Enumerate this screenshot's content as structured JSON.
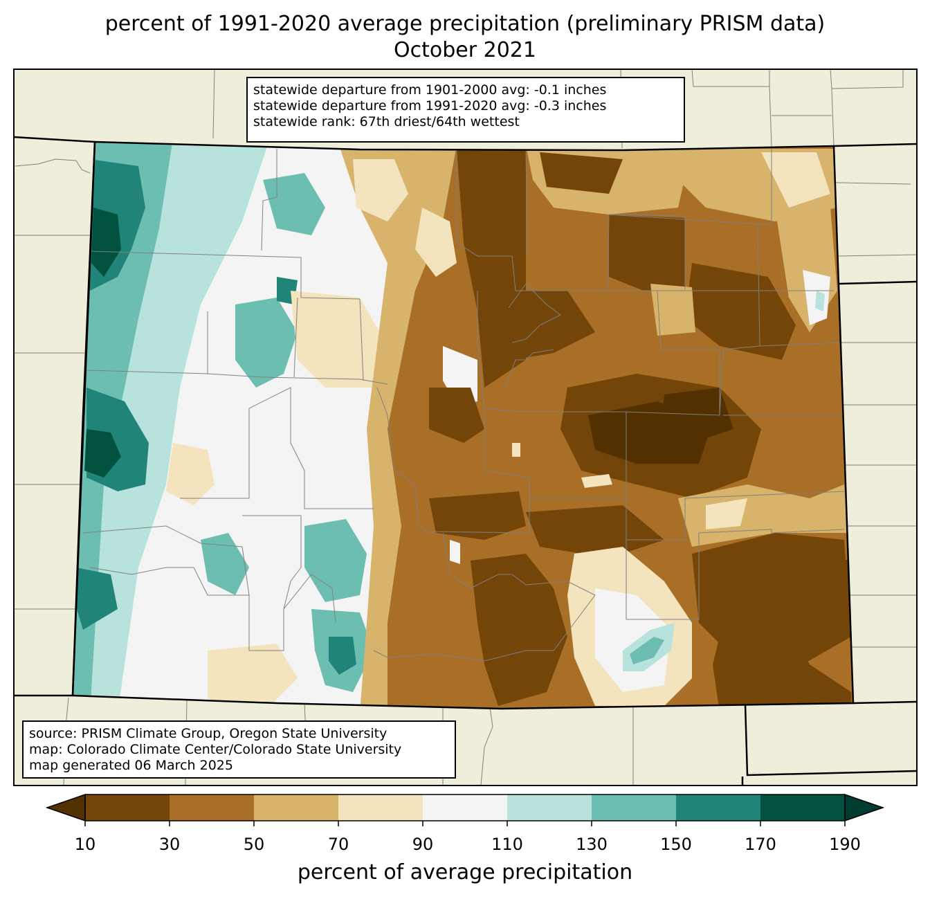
{
  "title_line1": "percent of 1991-2020 average precipitation (preliminary PRISM data)",
  "title_line2": "October 2021",
  "stats": [
    "statewide departure from 1901-2000 avg: -0.1 inches",
    "statewide departure from 1991-2020 avg: -0.3 inches",
    "statewide rank: 67th driest/64th wettest"
  ],
  "source": [
    "source: PRISM Climate Group, Oregon State University",
    "map: Colorado Climate Center/Colorado State University",
    "map generated 06 March 2025"
  ],
  "colorbar": {
    "label": "percent of average precipitation",
    "ticks": [
      "10",
      "30",
      "50",
      "70",
      "90",
      "110",
      "130",
      "150",
      "170",
      "190"
    ],
    "bins": [
      {
        "min": 10,
        "max": 30,
        "color": "#744509"
      },
      {
        "min": 30,
        "max": 50,
        "color": "#a96f26"
      },
      {
        "min": 50,
        "max": 70,
        "color": "#d8b36c"
      },
      {
        "min": 70,
        "max": 90,
        "color": "#f4e4bd"
      },
      {
        "min": 90,
        "max": 110,
        "color": "#f3f4f3"
      },
      {
        "min": 110,
        "max": 130,
        "color": "#b8e3dd"
      },
      {
        "min": 130,
        "max": 150,
        "color": "#6cbeb0"
      },
      {
        "min": 150,
        "max": 170,
        "color": "#218478"
      },
      {
        "min": 170,
        "max": 190,
        "color": "#01513f"
      }
    ],
    "under_color": "#533000",
    "over_color": "#003c30"
  },
  "colors": {
    "land": "#efeedb",
    "water_background": "#efeedb"
  }
}
